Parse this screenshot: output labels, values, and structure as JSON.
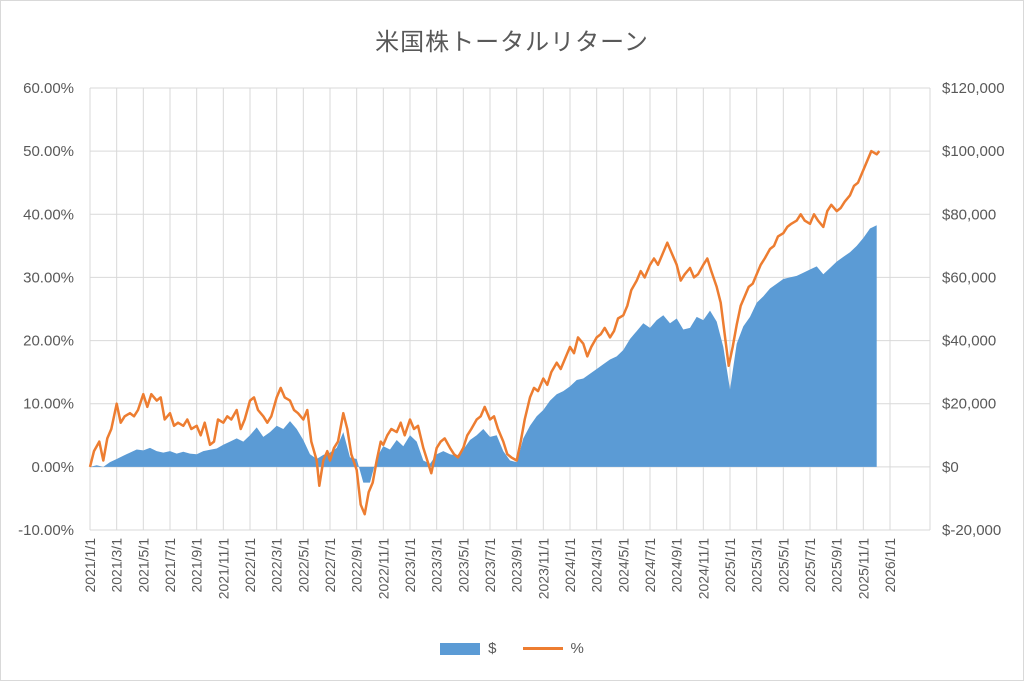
{
  "chart_data": {
    "type": "line",
    "title": "米国株トータルリターン",
    "colors": {
      "area": "#5b9bd5",
      "line": "#ed7d31",
      "negative_axis": "#ff0000",
      "grid": "#d9d9d9",
      "text": "#595959"
    },
    "grid": true,
    "legend_position": "bottom",
    "y_left": {
      "ticks": [
        "60.00%",
        "50.00%",
        "40.00%",
        "30.00%",
        "20.00%",
        "10.00%",
        "0.00%",
        "-10.00%"
      ],
      "ylim": [
        -10,
        60
      ]
    },
    "y_right": {
      "ticks": [
        "$120,000",
        "$100,000",
        "$80,000",
        "$60,000",
        "$40,000",
        "$20,000",
        "$0",
        "$-20,000"
      ],
      "ylim": [
        -20000,
        120000
      ]
    },
    "x_ticks": [
      "2021/1/1",
      "2021/3/1",
      "2021/5/1",
      "2021/7/1",
      "2021/9/1",
      "2021/11/1",
      "2022/1/1",
      "2022/3/1",
      "2022/5/1",
      "2022/7/1",
      "2022/9/1",
      "2022/11/1",
      "2023/1/1",
      "2023/3/1",
      "2023/5/1",
      "2023/7/1",
      "2023/9/1",
      "2023/11/1",
      "2024/1/1",
      "2024/3/1",
      "2024/5/1",
      "2024/7/1",
      "2024/9/1",
      "2024/11/1",
      "2025/1/1",
      "2025/3/1",
      "2025/5/1",
      "2025/7/1",
      "2025/9/1",
      "2025/11/1",
      "2026/1/1"
    ],
    "x_range_months": [
      0,
      63
    ],
    "series": [
      {
        "name": "$",
        "kind": "area",
        "axis": "right",
        "points": [
          [
            0,
            0
          ],
          [
            0.5,
            500
          ],
          [
            1,
            0
          ],
          [
            1.5,
            1500
          ],
          [
            2,
            2500
          ],
          [
            2.5,
            3500
          ],
          [
            3,
            4500
          ],
          [
            3.5,
            5500
          ],
          [
            4,
            5200
          ],
          [
            4.5,
            6000
          ],
          [
            5,
            5000
          ],
          [
            5.5,
            4500
          ],
          [
            6,
            5000
          ],
          [
            6.5,
            4200
          ],
          [
            7,
            4800
          ],
          [
            7.5,
            4200
          ],
          [
            8,
            4000
          ],
          [
            8.5,
            5000
          ],
          [
            9,
            5400
          ],
          [
            9.5,
            5800
          ],
          [
            10,
            7000
          ],
          [
            10.5,
            8000
          ],
          [
            11,
            9000
          ],
          [
            11.5,
            8000
          ],
          [
            12,
            10000
          ],
          [
            12.5,
            12500
          ],
          [
            13,
            9500
          ],
          [
            13.5,
            11000
          ],
          [
            14,
            13000
          ],
          [
            14.5,
            12000
          ],
          [
            15,
            14500
          ],
          [
            15.5,
            12000
          ],
          [
            16,
            8500
          ],
          [
            16.5,
            4000
          ],
          [
            17,
            2500
          ],
          [
            17.5,
            3800
          ],
          [
            18,
            4500
          ],
          [
            18.5,
            6000
          ],
          [
            19,
            11000
          ],
          [
            19.5,
            3000
          ],
          [
            20,
            2500
          ],
          [
            20.5,
            -5000
          ],
          [
            21,
            -5000
          ],
          [
            21.5,
            3000
          ],
          [
            22,
            6500
          ],
          [
            22.5,
            5500
          ],
          [
            23,
            8500
          ],
          [
            23.5,
            6500
          ],
          [
            24,
            10000
          ],
          [
            24.5,
            8000
          ],
          [
            25,
            2000
          ],
          [
            25.5,
            1000
          ],
          [
            26,
            4000
          ],
          [
            26.5,
            5000
          ],
          [
            27,
            4000
          ],
          [
            27.5,
            3500
          ],
          [
            28,
            5500
          ],
          [
            28.5,
            8500
          ],
          [
            29,
            10000
          ],
          [
            29.5,
            12000
          ],
          [
            30,
            9500
          ],
          [
            30.5,
            10000
          ],
          [
            31,
            5000
          ],
          [
            31.5,
            2000
          ],
          [
            32,
            1500
          ],
          [
            32.5,
            9000
          ],
          [
            33,
            13000
          ],
          [
            33.5,
            16000
          ],
          [
            34,
            18000
          ],
          [
            34.5,
            21000
          ],
          [
            35,
            23000
          ],
          [
            35.5,
            24000
          ],
          [
            36,
            25500
          ],
          [
            36.5,
            27500
          ],
          [
            37,
            28000
          ],
          [
            37.5,
            29500
          ],
          [
            38,
            31000
          ],
          [
            38.5,
            32500
          ],
          [
            39,
            34000
          ],
          [
            39.5,
            35000
          ],
          [
            40,
            37000
          ],
          [
            40.5,
            40500
          ],
          [
            41,
            43000
          ],
          [
            41.5,
            45500
          ],
          [
            42,
            44000
          ],
          [
            42.5,
            46500
          ],
          [
            43,
            48000
          ],
          [
            43.5,
            45500
          ],
          [
            44,
            47000
          ],
          [
            44.5,
            43500
          ],
          [
            45,
            44000
          ],
          [
            45.5,
            47500
          ],
          [
            46,
            46500
          ],
          [
            46.5,
            49500
          ],
          [
            47,
            46000
          ],
          [
            47.5,
            38000
          ],
          [
            48,
            24500
          ],
          [
            48.5,
            39000
          ],
          [
            49,
            44500
          ],
          [
            49.5,
            47500
          ],
          [
            50,
            52000
          ],
          [
            50.5,
            54000
          ],
          [
            51,
            56500
          ],
          [
            51.5,
            58000
          ],
          [
            52,
            59500
          ],
          [
            52.5,
            60000
          ],
          [
            53,
            60500
          ],
          [
            53.5,
            61500
          ],
          [
            54,
            62500
          ],
          [
            54.5,
            63500
          ],
          [
            55,
            61000
          ],
          [
            55.5,
            63000
          ],
          [
            56,
            65000
          ],
          [
            56.5,
            66500
          ],
          [
            57,
            68000
          ],
          [
            57.5,
            70000
          ],
          [
            58,
            72500
          ],
          [
            58.5,
            75500
          ],
          [
            59,
            76500
          ]
        ]
      },
      {
        "name": "%",
        "kind": "line",
        "axis": "left",
        "points": [
          [
            0,
            0
          ],
          [
            0.3,
            2.5
          ],
          [
            0.7,
            4
          ],
          [
            1,
            1
          ],
          [
            1.3,
            4.5
          ],
          [
            1.6,
            6
          ],
          [
            2,
            10
          ],
          [
            2.3,
            7
          ],
          [
            2.6,
            8
          ],
          [
            3,
            8.5
          ],
          [
            3.3,
            8
          ],
          [
            3.6,
            9
          ],
          [
            4,
            11.5
          ],
          [
            4.3,
            9.5
          ],
          [
            4.6,
            11.5
          ],
          [
            5,
            10.5
          ],
          [
            5.3,
            11
          ],
          [
            5.6,
            7.5
          ],
          [
            6,
            8.5
          ],
          [
            6.3,
            6.5
          ],
          [
            6.6,
            7
          ],
          [
            7,
            6.5
          ],
          [
            7.3,
            7.5
          ],
          [
            7.6,
            6
          ],
          [
            8,
            6.5
          ],
          [
            8.3,
            5
          ],
          [
            8.6,
            7
          ],
          [
            9,
            3.5
          ],
          [
            9.3,
            4
          ],
          [
            9.6,
            7.5
          ],
          [
            10,
            7
          ],
          [
            10.3,
            8
          ],
          [
            10.6,
            7.5
          ],
          [
            11,
            9
          ],
          [
            11.3,
            6
          ],
          [
            11.6,
            7.5
          ],
          [
            12,
            10.5
          ],
          [
            12.3,
            11
          ],
          [
            12.6,
            9
          ],
          [
            13,
            8
          ],
          [
            13.3,
            7
          ],
          [
            13.6,
            8
          ],
          [
            14,
            11
          ],
          [
            14.3,
            12.5
          ],
          [
            14.6,
            11
          ],
          [
            15,
            10.5
          ],
          [
            15.3,
            9
          ],
          [
            15.6,
            8.5
          ],
          [
            16,
            7.5
          ],
          [
            16.3,
            9
          ],
          [
            16.6,
            4
          ],
          [
            17,
            1
          ],
          [
            17.2,
            -3
          ],
          [
            17.5,
            1
          ],
          [
            17.8,
            2.5
          ],
          [
            18,
            1
          ],
          [
            18.3,
            3
          ],
          [
            18.6,
            4
          ],
          [
            19,
            8.5
          ],
          [
            19.3,
            6
          ],
          [
            19.6,
            2
          ],
          [
            20,
            -0.5
          ],
          [
            20.3,
            -6
          ],
          [
            20.6,
            -7.5
          ],
          [
            20.9,
            -4
          ],
          [
            21.2,
            -2.5
          ],
          [
            21.5,
            1
          ],
          [
            21.8,
            4
          ],
          [
            22,
            3.5
          ],
          [
            22.3,
            5
          ],
          [
            22.6,
            6
          ],
          [
            23,
            5.5
          ],
          [
            23.3,
            7
          ],
          [
            23.6,
            5
          ],
          [
            24,
            7.5
          ],
          [
            24.3,
            6
          ],
          [
            24.6,
            6.5
          ],
          [
            25,
            3
          ],
          [
            25.3,
            1
          ],
          [
            25.6,
            -1
          ],
          [
            26,
            3
          ],
          [
            26.3,
            4
          ],
          [
            26.6,
            4.5
          ],
          [
            27,
            3
          ],
          [
            27.3,
            2
          ],
          [
            27.6,
            1.5
          ],
          [
            28,
            3
          ],
          [
            28.3,
            5
          ],
          [
            28.6,
            6
          ],
          [
            29,
            7.5
          ],
          [
            29.3,
            8
          ],
          [
            29.6,
            9.5
          ],
          [
            30,
            7.5
          ],
          [
            30.3,
            8
          ],
          [
            30.6,
            6
          ],
          [
            31,
            4
          ],
          [
            31.3,
            2
          ],
          [
            31.6,
            1.5
          ],
          [
            32,
            1
          ],
          [
            32.3,
            4
          ],
          [
            32.6,
            7.5
          ],
          [
            33,
            11
          ],
          [
            33.3,
            12.5
          ],
          [
            33.6,
            12
          ],
          [
            34,
            14
          ],
          [
            34.3,
            13
          ],
          [
            34.6,
            15
          ],
          [
            35,
            16.5
          ],
          [
            35.3,
            15.5
          ],
          [
            35.6,
            17
          ],
          [
            36,
            19
          ],
          [
            36.3,
            18
          ],
          [
            36.6,
            20.5
          ],
          [
            37,
            19.5
          ],
          [
            37.3,
            17.5
          ],
          [
            37.6,
            19
          ],
          [
            38,
            20.5
          ],
          [
            38.3,
            21
          ],
          [
            38.6,
            22
          ],
          [
            39,
            20.5
          ],
          [
            39.3,
            21.5
          ],
          [
            39.6,
            23.5
          ],
          [
            40,
            24
          ],
          [
            40.3,
            25.5
          ],
          [
            40.6,
            28
          ],
          [
            41,
            29.5
          ],
          [
            41.3,
            31
          ],
          [
            41.6,
            30
          ],
          [
            42,
            32
          ],
          [
            42.3,
            33
          ],
          [
            42.6,
            32
          ],
          [
            43,
            34
          ],
          [
            43.3,
            35.5
          ],
          [
            43.6,
            34
          ],
          [
            44,
            32
          ],
          [
            44.3,
            29.5
          ],
          [
            44.6,
            30.5
          ],
          [
            45,
            31.5
          ],
          [
            45.3,
            30
          ],
          [
            45.6,
            30.5
          ],
          [
            46,
            32
          ],
          [
            46.3,
            33
          ],
          [
            46.6,
            31
          ],
          [
            47,
            28.5
          ],
          [
            47.3,
            26
          ],
          [
            47.6,
            21
          ],
          [
            47.9,
            16
          ],
          [
            48.2,
            19
          ],
          [
            48.5,
            22.5
          ],
          [
            48.8,
            25.5
          ],
          [
            49.1,
            27
          ],
          [
            49.4,
            28.5
          ],
          [
            49.7,
            29
          ],
          [
            50,
            30.5
          ],
          [
            50.3,
            32
          ],
          [
            50.6,
            33
          ],
          [
            51,
            34.5
          ],
          [
            51.3,
            35
          ],
          [
            51.6,
            36.5
          ],
          [
            52,
            37
          ],
          [
            52.3,
            38
          ],
          [
            52.6,
            38.5
          ],
          [
            53,
            39
          ],
          [
            53.3,
            40
          ],
          [
            53.6,
            39
          ],
          [
            54,
            38.5
          ],
          [
            54.3,
            40
          ],
          [
            54.6,
            39
          ],
          [
            55,
            38
          ],
          [
            55.3,
            40.5
          ],
          [
            55.6,
            41.5
          ],
          [
            56,
            40.5
          ],
          [
            56.3,
            41
          ],
          [
            56.6,
            42
          ],
          [
            57,
            43
          ],
          [
            57.3,
            44.5
          ],
          [
            57.6,
            45
          ],
          [
            58,
            47
          ],
          [
            58.3,
            48.5
          ],
          [
            58.6,
            50
          ],
          [
            59,
            49.5
          ],
          [
            59.2,
            50
          ]
        ]
      }
    ]
  }
}
